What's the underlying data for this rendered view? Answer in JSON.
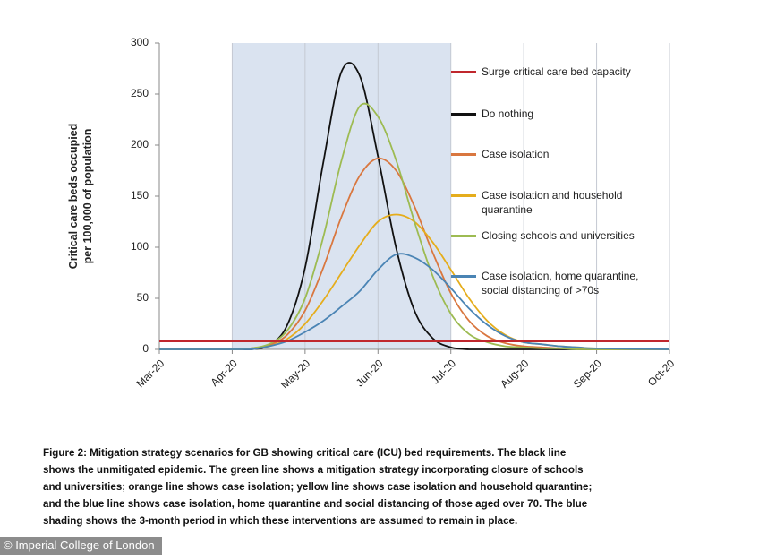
{
  "chart_data": {
    "type": "line",
    "y_label": [
      "Critical care beds occupied",
      "per 100,000 of population"
    ],
    "x": [
      0,
      1,
      1.25,
      1.5,
      1.75,
      2,
      2.25,
      2.5,
      2.75,
      3,
      3.25,
      3.5,
      3.75,
      4,
      4.25,
      4.5,
      4.75,
      5,
      5.25,
      5.5,
      5.75,
      6,
      7
    ],
    "xlim": [
      0,
      7
    ],
    "xticks": [
      {
        "value": 0,
        "label": "Mar-20"
      },
      {
        "value": 1,
        "label": "Apr-20"
      },
      {
        "value": 2,
        "label": "May-20"
      },
      {
        "value": 3,
        "label": "Jun-20"
      },
      {
        "value": 4,
        "label": "Jul-20"
      },
      {
        "value": 5,
        "label": "Aug-20"
      },
      {
        "value": 6,
        "label": "Sep-20"
      },
      {
        "value": 7,
        "label": "Oct-20"
      }
    ],
    "ylim": [
      0,
      300
    ],
    "yticks": [
      0,
      50,
      100,
      150,
      200,
      250,
      300
    ],
    "grid": "x",
    "shaded_span": [
      1,
      4
    ],
    "shade_color": "#dae3f0",
    "series": [
      {
        "name": "Surge critical care bed capacity",
        "color": "#c0272d",
        "x": [
          0,
          7
        ],
        "values": [
          8,
          8
        ]
      },
      {
        "name": "Do nothing",
        "color": "#111111",
        "values": [
          0,
          0,
          0,
          4,
          23,
          80,
          183,
          272,
          268,
          189,
          99,
          38,
          11,
          2,
          0,
          0,
          0,
          0,
          0,
          0,
          0,
          0,
          0
        ]
      },
      {
        "name": "Case isolation",
        "color": "#d9773f",
        "values": [
          0,
          0,
          1,
          4,
          14,
          38,
          80,
          130,
          170,
          187,
          175,
          140,
          95,
          55,
          28,
          13,
          6,
          3,
          2,
          1,
          1,
          0,
          0
        ]
      },
      {
        "name": "Case isolation and household quarantine",
        "color": "#e5ad1c",
        "values": [
          0,
          0,
          1,
          3,
          10,
          25,
          48,
          75,
          102,
          125,
          132,
          125,
          105,
          78,
          50,
          28,
          14,
          7,
          5,
          3,
          2,
          1,
          0
        ]
      },
      {
        "name": "Closing schools and universities",
        "color": "#9dbb52",
        "values": [
          0,
          0,
          1,
          5,
          18,
          50,
          110,
          185,
          238,
          228,
          185,
          125,
          72,
          35,
          15,
          7,
          3,
          2,
          1,
          1,
          0,
          0,
          0
        ]
      },
      {
        "name": "Case isolation, home quarantine, social distancing of >70s",
        "color": "#4a84b4",
        "values": [
          0,
          0,
          0,
          3,
          8,
          17,
          28,
          42,
          57,
          78,
          93,
          90,
          78,
          60,
          40,
          24,
          13,
          7,
          5,
          3,
          2,
          1,
          0
        ]
      }
    ]
  },
  "caption": [
    "Figure 2: Mitigation strategy scenarios for GB showing critical care (ICU) bed requirements. The black line",
    "shows the unmitigated epidemic. The green line shows a mitigation strategy incorporating closure of schools",
    "and universities; orange line shows case isolation; yellow line shows case isolation and household quarantine;",
    "and the blue line shows case isolation, home quarantine and social distancing of those aged over 70. The blue",
    "shading shows the 3-month period in which these interventions are assumed to remain in place."
  ],
  "credit": "© Imperial College of London"
}
